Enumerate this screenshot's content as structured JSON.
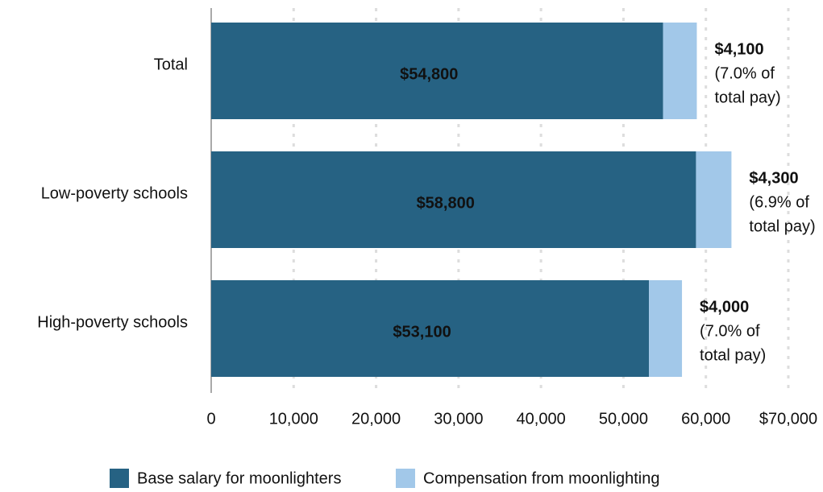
{
  "chart_data": {
    "type": "stacked-barh",
    "categories": [
      "Total",
      "Low-poverty schools",
      "High-poverty schools"
    ],
    "series": [
      {
        "name": "Base salary for moonlighters",
        "color": "#266283",
        "values": [
          54800,
          58800,
          53100
        ],
        "value_labels": [
          "$54,800",
          "$58,800",
          "$53,100"
        ]
      },
      {
        "name": "Compensation from moonlighting",
        "color": "#a2c8e9",
        "values": [
          4100,
          4300,
          4000
        ],
        "value_labels": [
          "$4,100",
          "$4,300",
          "$4,000"
        ]
      }
    ],
    "annotations": [
      [
        "(7.0% of",
        "total pay)"
      ],
      [
        "(6.9% of",
        "total pay)"
      ],
      [
        "(7.0% of",
        "total pay)"
      ]
    ],
    "xlim": [
      0,
      70000
    ],
    "xticks": [
      0,
      {
        "value": 10000,
        "label": "10,000"
      },
      {
        "value": 20000,
        "label": "20,000"
      },
      {
        "value": 30000,
        "label": "30,000"
      },
      {
        "value": 40000,
        "label": "40,000"
      },
      {
        "value": 50000,
        "label": "50,000"
      },
      {
        "value": 60000,
        "label": "60,000"
      },
      {
        "value": 70000,
        "label": "$70,000"
      }
    ],
    "grid": true
  }
}
